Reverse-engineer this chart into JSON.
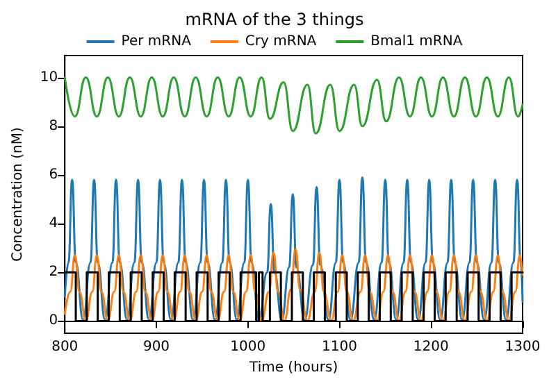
{
  "chart_data": {
    "type": "line",
    "title": "mRNA of the 3 things",
    "xlabel": "Time (hours)",
    "ylabel": "Concentration (nM)",
    "xlim": [
      800,
      1300
    ],
    "xticks": [
      800,
      900,
      1000,
      1100,
      1200,
      1300
    ],
    "ylim": [
      -0.5,
      10.9
    ],
    "yticks": [
      0,
      2,
      4,
      6,
      8,
      10
    ],
    "legend": "top",
    "marker": "none",
    "series": [
      {
        "name": "Per mRNA",
        "color": "#1f77b4",
        "x": [
          800,
          804,
          808,
          812,
          820,
          828,
          832,
          836,
          844,
          852,
          856,
          860,
          868,
          876,
          880,
          884,
          892,
          900,
          904,
          908,
          916,
          924,
          928,
          932,
          940,
          948,
          952,
          956,
          964,
          972,
          976,
          980,
          988,
          996,
          1000,
          1004,
          1012,
          1021,
          1025,
          1029,
          1037,
          1045,
          1049,
          1053,
          1062,
          1071,
          1075,
          1079,
          1088,
          1096,
          1100,
          1104,
          1112,
          1121,
          1125,
          1129,
          1138,
          1146,
          1150,
          1154,
          1162,
          1170,
          1174,
          1178,
          1186,
          1194,
          1198,
          1202,
          1210,
          1218,
          1222,
          1226,
          1234,
          1242,
          1246,
          1250,
          1258,
          1266,
          1270,
          1274,
          1282,
          1290,
          1294,
          1298,
          1300
        ],
        "values": [
          1.0,
          2.4,
          5.8,
          2.4,
          0.05,
          2.4,
          5.8,
          2.4,
          0.05,
          2.4,
          5.8,
          2.4,
          0.05,
          2.4,
          5.8,
          2.4,
          0.05,
          2.4,
          5.8,
          2.4,
          0.05,
          2.4,
          5.8,
          2.4,
          0.05,
          2.4,
          5.8,
          2.4,
          0.05,
          2.4,
          5.8,
          2.4,
          0.05,
          2.4,
          5.8,
          2.4,
          0.05,
          2.0,
          4.8,
          2.0,
          0.05,
          2.2,
          5.2,
          2.2,
          0.05,
          2.3,
          5.5,
          2.3,
          0.05,
          2.4,
          5.8,
          2.4,
          0.05,
          2.4,
          5.9,
          2.4,
          0.05,
          2.4,
          5.8,
          2.4,
          0.05,
          2.4,
          5.8,
          2.4,
          0.05,
          2.4,
          5.8,
          2.4,
          0.05,
          2.4,
          5.8,
          2.4,
          0.05,
          2.4,
          5.8,
          2.4,
          0.05,
          2.4,
          5.8,
          2.4,
          0.05,
          2.4,
          5.8,
          2.4,
          0.8
        ]
      },
      {
        "name": "Cry mRNA",
        "color": "#ff7f0e",
        "x": [
          800,
          806,
          811,
          816,
          823,
          830,
          835,
          840,
          847,
          854,
          859,
          864,
          871,
          878,
          883,
          888,
          895,
          902,
          907,
          912,
          919,
          926,
          931,
          936,
          943,
          950,
          955,
          960,
          967,
          974,
          979,
          984,
          991,
          998,
          1003,
          1008,
          1015,
          1023,
          1028,
          1033,
          1040,
          1047,
          1052,
          1057,
          1065,
          1073,
          1078,
          1083,
          1091,
          1098,
          1103,
          1108,
          1115,
          1123,
          1128,
          1133,
          1141,
          1148,
          1153,
          1158,
          1165,
          1172,
          1177,
          1182,
          1189,
          1196,
          1201,
          1206,
          1213,
          1220,
          1225,
          1230,
          1237,
          1244,
          1249,
          1254,
          1261,
          1268,
          1273,
          1278,
          1285,
          1292,
          1297,
          1300
        ],
        "values": [
          0.3,
          1.2,
          2.7,
          1.2,
          0.02,
          1.2,
          2.7,
          1.2,
          0.02,
          1.2,
          2.7,
          1.2,
          0.02,
          1.2,
          2.7,
          1.2,
          0.02,
          1.2,
          2.7,
          1.2,
          0.02,
          1.2,
          2.7,
          1.2,
          0.02,
          1.2,
          2.7,
          1.2,
          0.02,
          1.2,
          2.7,
          1.2,
          0.02,
          1.2,
          2.7,
          1.2,
          0.02,
          1.2,
          2.8,
          1.2,
          0.02,
          1.3,
          2.95,
          1.3,
          0.02,
          1.2,
          2.8,
          1.2,
          0.02,
          1.2,
          2.7,
          1.2,
          0.02,
          1.2,
          2.7,
          1.2,
          0.02,
          1.2,
          2.7,
          1.2,
          0.02,
          1.2,
          2.7,
          1.2,
          0.02,
          1.2,
          2.7,
          1.2,
          0.02,
          1.2,
          2.7,
          1.2,
          0.02,
          1.2,
          2.7,
          1.2,
          0.02,
          1.2,
          2.7,
          1.2,
          0.02,
          1.2,
          2.7,
          1.9
        ]
      },
      {
        "name": "Bmal1 mRNA",
        "color": "#2ca02c",
        "x": [
          800,
          811,
          823,
          835,
          847,
          859,
          871,
          883,
          895,
          907,
          919,
          931,
          943,
          955,
          967,
          979,
          991,
          1003,
          1015,
          1024,
          1039,
          1049,
          1065,
          1074,
          1090,
          1100,
          1116,
          1125,
          1141,
          1151,
          1165,
          1177,
          1189,
          1201,
          1213,
          1225,
          1237,
          1249,
          1261,
          1273,
          1285,
          1295,
          1300
        ],
        "values": [
          10.0,
          8.4,
          10.0,
          8.4,
          10.0,
          8.4,
          10.0,
          8.4,
          10.0,
          8.4,
          10.0,
          8.4,
          10.0,
          8.4,
          10.0,
          8.4,
          10.0,
          8.4,
          10.0,
          8.3,
          9.8,
          7.8,
          9.7,
          7.7,
          9.7,
          7.8,
          9.7,
          8.0,
          9.9,
          8.2,
          10.0,
          8.4,
          10.0,
          8.4,
          10.0,
          8.4,
          10.0,
          8.4,
          10.0,
          8.4,
          10.0,
          8.4,
          8.9
        ]
      },
      {
        "type": "step",
        "color": "#000000",
        "x": [
          800,
          812,
          824,
          836,
          848,
          860,
          872,
          884,
          896,
          908,
          920,
          932,
          944,
          956,
          968,
          980,
          992,
          1009,
          1012,
          1016,
          1024,
          1036,
          1048,
          1060,
          1072,
          1084,
          1096,
          1108,
          1120,
          1132,
          1144,
          1156,
          1168,
          1180,
          1192,
          1204,
          1216,
          1228,
          1240,
          1252,
          1264,
          1276,
          1288,
          1300
        ],
        "values": [
          2,
          0,
          2,
          0,
          2,
          0,
          2,
          0,
          2,
          0,
          2,
          0,
          2,
          0,
          2,
          0,
          2,
          0,
          2,
          0,
          2,
          0,
          2,
          0,
          2,
          0,
          2,
          0,
          2,
          0,
          2,
          0,
          2,
          0,
          2,
          0,
          2,
          0,
          2,
          0,
          2,
          0,
          2,
          2
        ]
      }
    ]
  }
}
